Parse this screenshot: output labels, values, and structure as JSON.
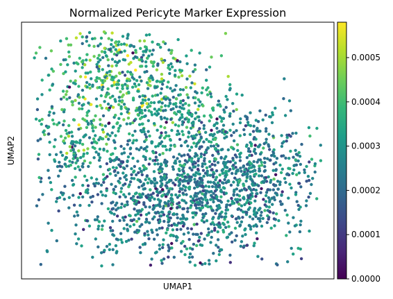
{
  "chart_data": {
    "type": "scatter",
    "title": "Normalized Pericyte Marker Expression",
    "xlabel": "UMAP1",
    "ylabel": "UMAP2",
    "xticks": [],
    "yticks": [],
    "colormap": "viridis",
    "colorbar": {
      "range": [
        0.0,
        0.00058
      ],
      "tick_values": [
        0.0,
        0.0001,
        0.0002,
        0.0003,
        0.0004,
        0.0005
      ],
      "tick_labels": [
        "0.0000",
        "0.0001",
        "0.0002",
        "0.0003",
        "0.0004",
        "0.0005"
      ],
      "colors": [
        "#440154",
        "#482878",
        "#3e4989",
        "#31688e",
        "#26828e",
        "#1f9e89",
        "#35b779",
        "#6ece58",
        "#b5de2b",
        "#fde725"
      ]
    },
    "grid": false,
    "legend": "none",
    "point_count_estimate": 2500
  }
}
